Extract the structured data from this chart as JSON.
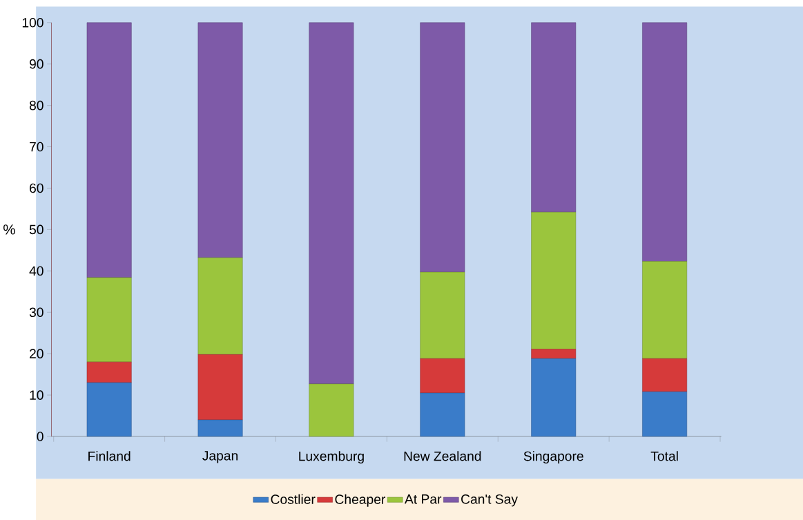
{
  "chart_data": {
    "type": "bar",
    "stacked": true,
    "ylabel": "%",
    "categories": [
      "Finland",
      "Japan",
      "Luxemburg",
      "New Zealand",
      "Singapore",
      "Total"
    ],
    "series": [
      {
        "name": "Costlier",
        "color": "#3a7cc9",
        "values": [
          13,
          4,
          0,
          10.5,
          18.8,
          10.8
        ]
      },
      {
        "name": "Cheaper",
        "color": "#d63a3a",
        "values": [
          5,
          15.8,
          0,
          8.3,
          2.3,
          8
        ]
      },
      {
        "name": "At Par",
        "color": "#9bc53d",
        "values": [
          20.4,
          23.4,
          12.7,
          20.9,
          33.1,
          23.5
        ]
      },
      {
        "name": "Can't Say",
        "color": "#7e5aa8",
        "values": [
          61.6,
          56.8,
          87.3,
          60.3,
          45.8,
          57.7
        ]
      }
    ],
    "ylim": [
      0,
      100
    ],
    "yticks": [
      0,
      10,
      20,
      30,
      40,
      50,
      60,
      70,
      80,
      90,
      100
    ],
    "grid": false,
    "legend": "bottom"
  }
}
